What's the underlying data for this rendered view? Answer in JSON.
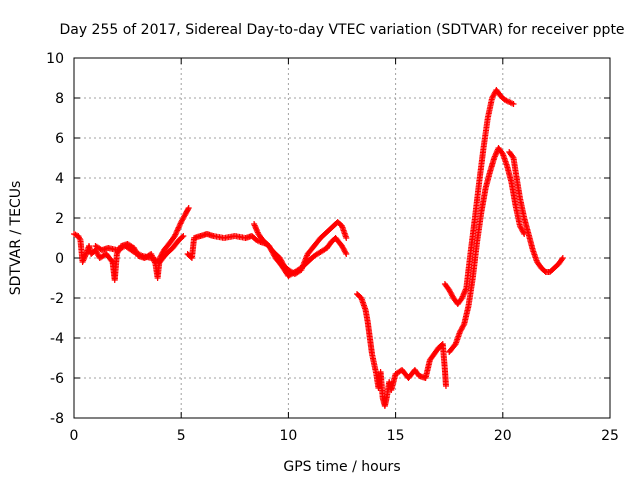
{
  "chart_data": {
    "type": "scatter",
    "title": "Day 255 of 2017, Sidereal Day-to-day VTEC variation (SDTVAR) for receiver ppte",
    "xlabel": "GPS time / hours",
    "ylabel": "SDTVAR / TECUs",
    "xlim": [
      0,
      25
    ],
    "ylim": [
      -8,
      10
    ],
    "xticks": [
      "0",
      "5",
      "10",
      "15",
      "20",
      "25"
    ],
    "yticks": [
      "-8",
      "-6",
      "-4",
      "-2",
      "0",
      "2",
      "4",
      "6",
      "8",
      "10"
    ],
    "grid": true,
    "marker": "+",
    "color": "#ff0000",
    "series": [
      {
        "points": [
          [
            0.0,
            1.2
          ],
          [
            0.2,
            1.1
          ],
          [
            0.3,
            0.9
          ],
          [
            0.4,
            -0.2
          ],
          [
            0.6,
            0.3
          ],
          [
            0.7,
            0.6
          ],
          [
            0.8,
            0.2
          ],
          [
            1.0,
            0.4
          ],
          [
            1.2,
            0.0
          ],
          [
            1.5,
            0.2
          ],
          [
            1.8,
            -0.2
          ],
          [
            1.9,
            -1.1
          ],
          [
            2.0,
            0.2
          ],
          [
            2.2,
            0.6
          ],
          [
            2.5,
            0.7
          ],
          [
            2.8,
            0.5
          ],
          [
            3.0,
            0.1
          ],
          [
            3.3,
            0.0
          ],
          [
            3.6,
            0.2
          ],
          [
            3.8,
            -0.3
          ],
          [
            3.9,
            -1.0
          ],
          [
            4.0,
            0.0
          ],
          [
            4.2,
            0.4
          ],
          [
            4.5,
            0.8
          ],
          [
            4.7,
            1.1
          ],
          [
            5.0,
            1.8
          ],
          [
            5.2,
            2.2
          ],
          [
            5.35,
            2.5
          ],
          [
            5.3,
            0.2
          ],
          [
            5.5,
            0.0
          ],
          [
            5.6,
            1.0
          ],
          [
            5.9,
            1.1
          ],
          [
            6.2,
            1.2
          ],
          [
            6.5,
            1.1
          ],
          [
            7.0,
            1.0
          ],
          [
            7.5,
            1.1
          ],
          [
            8.0,
            1.0
          ],
          [
            8.3,
            1.1
          ],
          [
            8.5,
            0.9
          ],
          [
            8.7,
            0.8
          ],
          [
            9.0,
            0.7
          ],
          [
            9.3,
            0.3
          ],
          [
            9.6,
            0.0
          ],
          [
            9.8,
            -0.4
          ],
          [
            10.0,
            -0.6
          ],
          [
            10.3,
            -0.8
          ],
          [
            10.6,
            -0.6
          ],
          [
            10.9,
            0.2
          ],
          [
            11.2,
            0.6
          ],
          [
            11.5,
            1.0
          ],
          [
            11.8,
            1.3
          ],
          [
            12.1,
            1.6
          ],
          [
            12.3,
            1.8
          ],
          [
            12.5,
            1.6
          ],
          [
            12.7,
            1.0
          ],
          [
            8.4,
            1.7
          ],
          [
            8.6,
            1.2
          ],
          [
            8.8,
            0.9
          ],
          [
            9.1,
            0.6
          ],
          [
            9.4,
            0.0
          ],
          [
            9.7,
            -0.4
          ],
          [
            10.0,
            -0.9
          ],
          [
            10.3,
            -0.7
          ],
          [
            10.6,
            -0.5
          ],
          [
            10.9,
            -0.2
          ],
          [
            11.2,
            0.1
          ],
          [
            11.5,
            0.3
          ],
          [
            11.8,
            0.5
          ],
          [
            12.0,
            0.8
          ],
          [
            12.2,
            1.0
          ],
          [
            12.5,
            0.6
          ],
          [
            12.7,
            0.2
          ],
          [
            1.0,
            0.6
          ],
          [
            1.3,
            0.4
          ],
          [
            1.6,
            0.5
          ],
          [
            2.0,
            0.4
          ],
          [
            2.4,
            0.6
          ],
          [
            2.8,
            0.3
          ],
          [
            3.2,
            0.1
          ],
          [
            3.6,
            0.0
          ],
          [
            4.0,
            -0.2
          ],
          [
            4.3,
            0.2
          ],
          [
            4.6,
            0.5
          ],
          [
            4.9,
            0.9
          ],
          [
            5.1,
            1.1
          ],
          [
            13.2,
            -1.8
          ],
          [
            13.4,
            -2.0
          ],
          [
            13.6,
            -2.6
          ],
          [
            13.7,
            -3.2
          ],
          [
            13.8,
            -4.0
          ],
          [
            13.9,
            -4.8
          ],
          [
            14.1,
            -5.8
          ],
          [
            14.2,
            -6.5
          ],
          [
            14.3,
            -5.7
          ],
          [
            14.4,
            -7.0
          ],
          [
            14.5,
            -7.4
          ],
          [
            14.6,
            -6.9
          ],
          [
            14.7,
            -6.2
          ],
          [
            14.8,
            -6.6
          ],
          [
            15.0,
            -5.8
          ],
          [
            15.3,
            -5.6
          ],
          [
            15.6,
            -6.0
          ],
          [
            15.9,
            -5.6
          ],
          [
            16.1,
            -5.9
          ],
          [
            16.4,
            -6.0
          ],
          [
            16.6,
            -5.1
          ],
          [
            16.8,
            -4.8
          ],
          [
            17.0,
            -4.5
          ],
          [
            17.2,
            -4.3
          ],
          [
            17.3,
            -5.6
          ],
          [
            17.35,
            -6.4
          ],
          [
            17.3,
            -1.3
          ],
          [
            17.5,
            -1.6
          ],
          [
            17.7,
            -2.0
          ],
          [
            17.9,
            -2.3
          ],
          [
            18.1,
            -2.0
          ],
          [
            18.3,
            -1.5
          ],
          [
            18.5,
            0.3
          ],
          [
            18.7,
            2.0
          ],
          [
            18.9,
            3.8
          ],
          [
            19.1,
            5.5
          ],
          [
            19.3,
            7.0
          ],
          [
            19.5,
            8.0
          ],
          [
            19.7,
            8.4
          ],
          [
            19.9,
            8.1
          ],
          [
            20.1,
            7.9
          ],
          [
            20.3,
            7.8
          ],
          [
            20.5,
            7.7
          ],
          [
            17.5,
            -4.7
          ],
          [
            17.8,
            -4.3
          ],
          [
            18.0,
            -3.7
          ],
          [
            18.2,
            -3.3
          ],
          [
            18.4,
            -2.4
          ],
          [
            18.6,
            -1.0
          ],
          [
            18.8,
            0.8
          ],
          [
            19.0,
            2.3
          ],
          [
            19.2,
            3.5
          ],
          [
            19.4,
            4.3
          ],
          [
            19.6,
            5.0
          ],
          [
            19.8,
            5.5
          ],
          [
            20.0,
            5.2
          ],
          [
            20.2,
            4.6
          ],
          [
            20.4,
            3.8
          ],
          [
            20.6,
            2.6
          ],
          [
            20.8,
            1.6
          ],
          [
            21.0,
            1.2
          ],
          [
            20.3,
            5.3
          ],
          [
            20.5,
            5.0
          ],
          [
            20.6,
            4.3
          ],
          [
            20.8,
            3.0
          ],
          [
            21.0,
            2.0
          ],
          [
            21.2,
            1.2
          ],
          [
            21.4,
            0.4
          ],
          [
            21.6,
            -0.2
          ],
          [
            21.8,
            -0.5
          ],
          [
            22.0,
            -0.7
          ],
          [
            22.2,
            -0.7
          ],
          [
            22.4,
            -0.5
          ],
          [
            22.6,
            -0.3
          ],
          [
            22.8,
            0.0
          ]
        ]
      }
    ]
  }
}
